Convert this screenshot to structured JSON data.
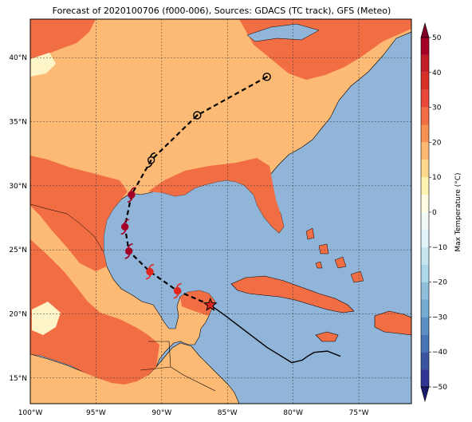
{
  "title": "Forecast of 2020100706 (f000-006), Sources: GDACS (TC track), GFS (Meteo)",
  "map": {
    "lon_ticks": [
      {
        "value": -100,
        "label": "100°W"
      },
      {
        "value": -95,
        "label": "95°W"
      },
      {
        "value": -90,
        "label": "90°W"
      },
      {
        "value": -85,
        "label": "85°W"
      },
      {
        "value": -80,
        "label": "80°W"
      },
      {
        "value": -75,
        "label": "75°W"
      }
    ],
    "lat_ticks": [
      {
        "value": 15,
        "label": "15°N"
      },
      {
        "value": 20,
        "label": "20°N"
      },
      {
        "value": 25,
        "label": "25°N"
      },
      {
        "value": 30,
        "label": "30°N"
      },
      {
        "value": 35,
        "label": "35°N"
      },
      {
        "value": 40,
        "label": "40°N"
      }
    ],
    "extent": {
      "lon_min": -100,
      "lon_max": -71,
      "lat_min": 13,
      "lat_max": 43
    },
    "colors": {
      "ocean": "#91b4d9",
      "land_10_20": "#fdba74",
      "land_20_30": "#f16d43",
      "land_0_10": "#fdf5c8",
      "track_forecast": "#000000",
      "track_past": "#000000",
      "storm_symbol_strong": "#a50026",
      "storm_symbol_weak": "#e3261d",
      "current_position": "#e3261d"
    },
    "past_track": [
      [
        -86.3,
        20.7
      ],
      [
        -85.2,
        19.9
      ],
      [
        -83.8,
        18.8
      ],
      [
        -82.0,
        17.4
      ],
      [
        -80.1,
        16.2
      ],
      [
        -79.3,
        16.4
      ],
      [
        -78.9,
        16.7
      ],
      [
        -78.4,
        17.0
      ],
      [
        -77.4,
        17.1
      ],
      [
        -76.4,
        16.7
      ]
    ],
    "forecast_track": [
      [
        -86.3,
        20.7
      ],
      [
        -88.8,
        21.8
      ],
      [
        -90.9,
        23.3
      ],
      [
        -92.5,
        24.9
      ],
      [
        -92.8,
        26.8
      ],
      [
        -92.3,
        29.3
      ],
      [
        -90.8,
        32.0
      ],
      [
        -87.3,
        35.5
      ],
      [
        -82.0,
        38.5
      ]
    ],
    "storm_points": [
      {
        "lon": -88.8,
        "lat": 21.8,
        "kind": "hurricane-weak"
      },
      {
        "lon": -90.9,
        "lat": 23.3,
        "kind": "hurricane-weak"
      },
      {
        "lon": -92.5,
        "lat": 24.9,
        "kind": "hurricane-strong"
      },
      {
        "lon": -92.8,
        "lat": 26.8,
        "kind": "hurricane-strong"
      },
      {
        "lon": -92.3,
        "lat": 29.3,
        "kind": "hurricane-strong"
      },
      {
        "lon": -90.8,
        "lat": 32.0,
        "kind": "storm-outline"
      },
      {
        "lon": -87.3,
        "lat": 35.5,
        "kind": "low"
      },
      {
        "lon": -82.0,
        "lat": 38.5,
        "kind": "low"
      }
    ],
    "current_position": {
      "lon": -86.3,
      "lat": 20.7
    }
  },
  "colorbar": {
    "title": "Max Temperature (°C)",
    "ticks": [
      {
        "value": 50,
        "label": "50"
      },
      {
        "value": 40,
        "label": "40"
      },
      {
        "value": 30,
        "label": "30"
      },
      {
        "value": 20,
        "label": "20"
      },
      {
        "value": 10,
        "label": "10"
      },
      {
        "value": 0,
        "label": "0"
      },
      {
        "value": -10,
        "label": "−10"
      },
      {
        "value": -20,
        "label": "−20"
      },
      {
        "value": -30,
        "label": "−30"
      },
      {
        "value": -40,
        "label": "−40"
      },
      {
        "value": -50,
        "label": "−50"
      }
    ],
    "bands": [
      {
        "from": 45,
        "to": 50,
        "color": "#a50026"
      },
      {
        "from": 40,
        "to": 45,
        "color": "#c21c27"
      },
      {
        "from": 35,
        "to": 40,
        "color": "#d73027"
      },
      {
        "from": 30,
        "to": 35,
        "color": "#e8473a"
      },
      {
        "from": 25,
        "to": 30,
        "color": "#f16d43"
      },
      {
        "from": 20,
        "to": 25,
        "color": "#f79050"
      },
      {
        "from": 15,
        "to": 20,
        "color": "#fdba74"
      },
      {
        "from": 10,
        "to": 15,
        "color": "#fed98b"
      },
      {
        "from": 5,
        "to": 10,
        "color": "#fef3b0"
      },
      {
        "from": 0,
        "to": 5,
        "color": "#fffbe0"
      },
      {
        "from": -5,
        "to": 0,
        "color": "#f1f9f4"
      },
      {
        "from": -10,
        "to": -5,
        "color": "#e0f3f8"
      },
      {
        "from": -15,
        "to": -10,
        "color": "#c7e6f0"
      },
      {
        "from": -20,
        "to": -15,
        "color": "#abd9e9"
      },
      {
        "from": -25,
        "to": -20,
        "color": "#91bfdb"
      },
      {
        "from": -30,
        "to": -25,
        "color": "#74add1"
      },
      {
        "from": -35,
        "to": -30,
        "color": "#5b8fc1"
      },
      {
        "from": -40,
        "to": -35,
        "color": "#4575b4"
      },
      {
        "from": -45,
        "to": -40,
        "color": "#3a55a0"
      },
      {
        "from": -50,
        "to": -45,
        "color": "#313695"
      }
    ],
    "extend_top_color": "#800026",
    "extend_bottom_color": "#1a1a6e"
  }
}
